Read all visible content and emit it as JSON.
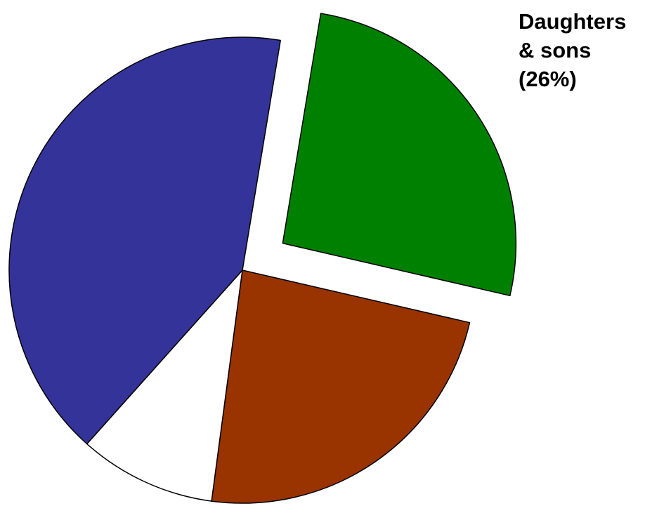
{
  "chart_data": {
    "type": "pie",
    "categories": [
      "Daughters & sons",
      null,
      null,
      null
    ],
    "values": [
      26,
      23.5,
      9.5,
      41
    ],
    "value_labels": [
      "(26%)",
      null,
      null,
      null
    ],
    "colors": [
      "#008000",
      "#993300",
      "#ffffff",
      "#333399"
    ],
    "explode": [
      true,
      false,
      false,
      false
    ]
  }
}
